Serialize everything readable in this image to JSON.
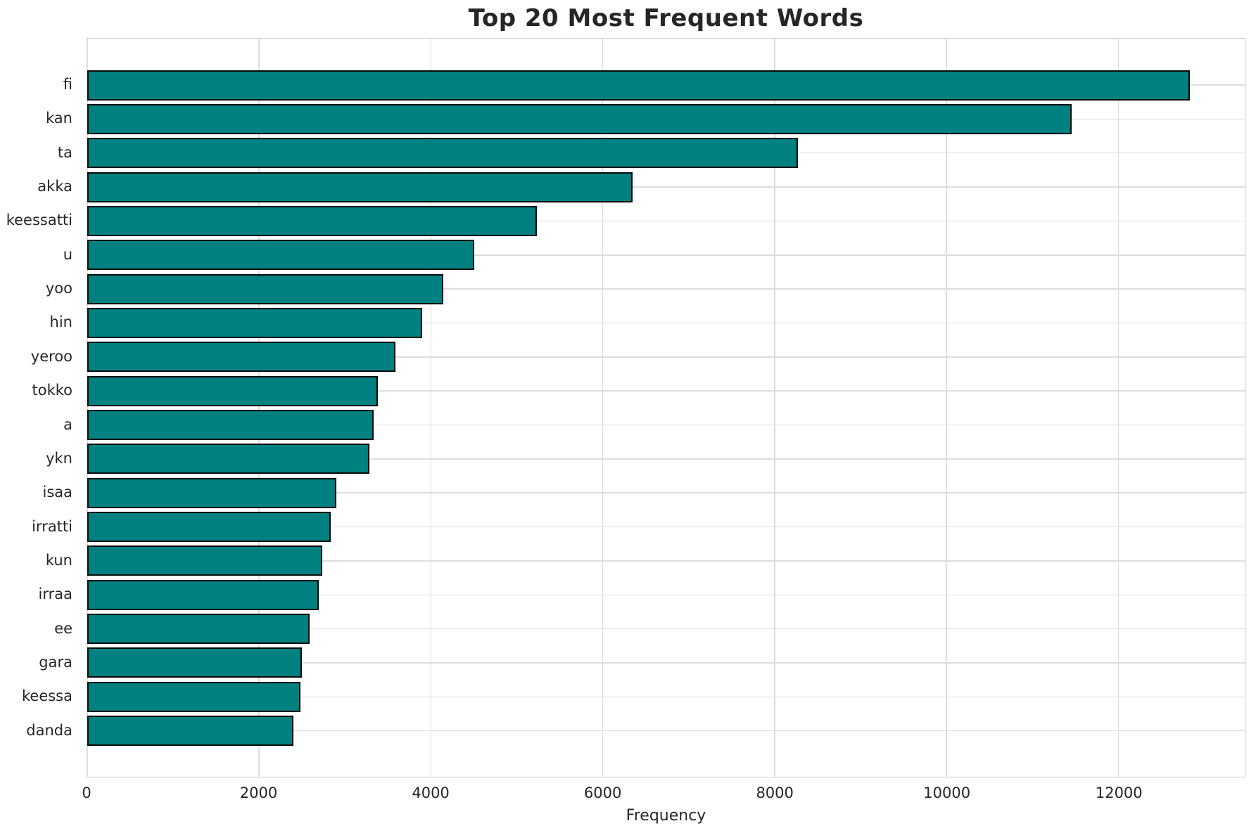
{
  "chart_data": {
    "type": "bar",
    "orientation": "horizontal",
    "title": "Top 20 Most Frequent Words",
    "xlabel": "Frequency",
    "ylabel": "",
    "categories": [
      "fi",
      "kan",
      "ta",
      "akka",
      "keessatti",
      "u",
      "yoo",
      "hin",
      "yeroo",
      "tokko",
      "a",
      "ykn",
      "isaa",
      "irratti",
      "kun",
      "irraa",
      "ee",
      "gara",
      "keessa",
      "danda"
    ],
    "values": [
      12830,
      11455,
      8270,
      6345,
      5230,
      4500,
      4140,
      3900,
      3590,
      3385,
      3335,
      3285,
      2895,
      2830,
      2735,
      2690,
      2585,
      2500,
      2480,
      2400
    ],
    "xlim": [
      0,
      13470
    ],
    "xticks": [
      0,
      2000,
      4000,
      6000,
      8000,
      10000,
      12000
    ],
    "grid": true,
    "legend": "none",
    "bar_color": "#008080",
    "bar_edge_color": "#0a0a0a",
    "grid_color": "#dddddd",
    "spine_color": "#cccccc",
    "text_color": "#262626",
    "background_color": "#ffffff"
  }
}
